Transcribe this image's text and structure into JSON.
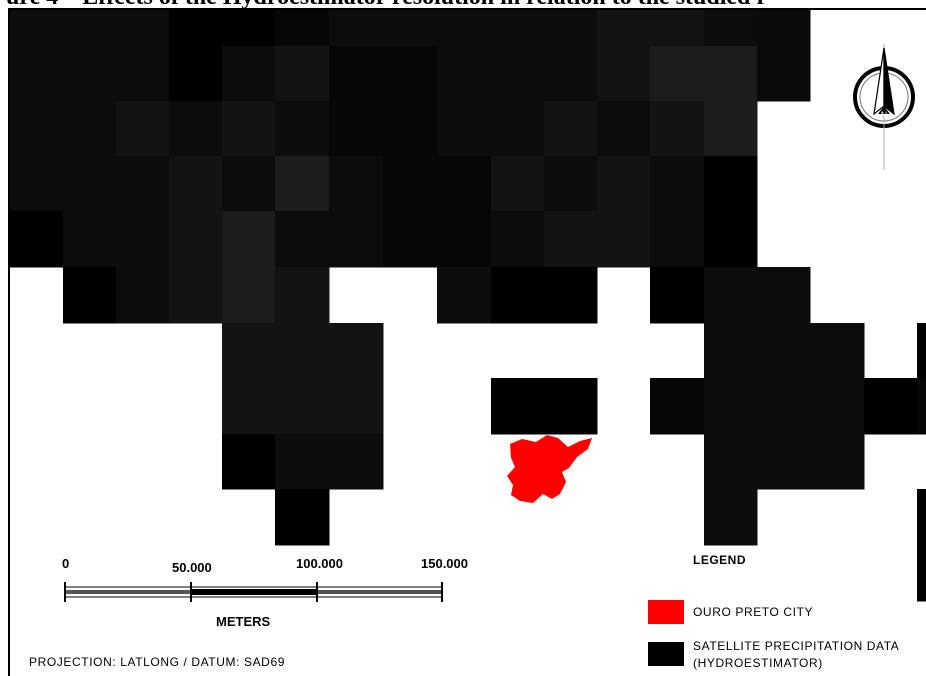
{
  "figure_title": "ure 4 – Effects of the Hydroestimator resolution in relation to the studied r",
  "north_arrow": {
    "icon": "north-arrow-icon",
    "label": "N"
  },
  "scale_bar": {
    "ticks": [
      "0",
      "50.000",
      "100.000",
      "150.000"
    ],
    "unit": "METERS"
  },
  "legend": {
    "title": "LEGEND",
    "items": [
      {
        "label": "OURO PRETO CITY",
        "color": "#ff0000"
      },
      {
        "label_line1": "SATELLITE PRECIPITATION DATA",
        "label_line2": "(HYDROESTIMATOR)",
        "color": "#000000"
      }
    ]
  },
  "projection": "PROJECTION:  LATLONG  / DATUM:  SAD69",
  "colors": {
    "city": "#ff0000",
    "background": "#ffffff"
  }
}
